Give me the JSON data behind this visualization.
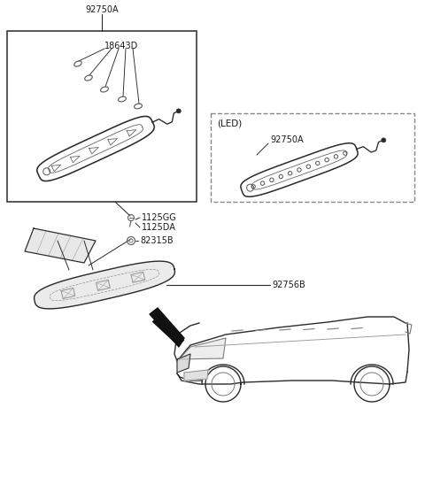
{
  "bg_color": "#ffffff",
  "line_color": "#2a2a2a",
  "text_color": "#1a1a1a",
  "label_fontsize": 7.0,
  "parts": {
    "label_92750A_top": "92750A",
    "label_18643D": "18643D",
    "label_1125GG": "1125GG",
    "label_1125DA": "1125DA",
    "label_82315B": "82315B",
    "label_92750A_led": "92750A",
    "label_92756B": "92756B",
    "label_LED": "(LED)"
  }
}
